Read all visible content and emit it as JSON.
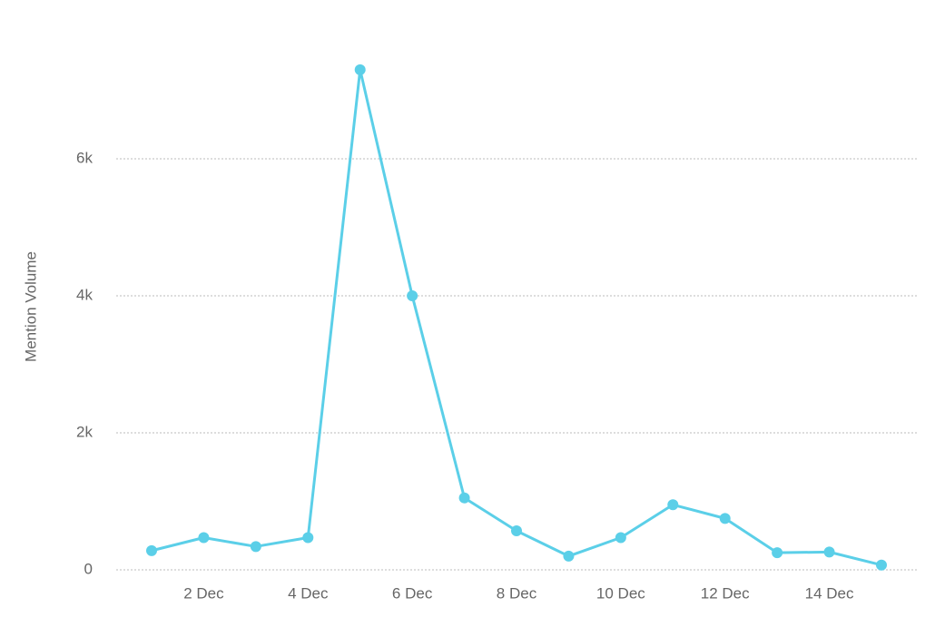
{
  "chart_data": {
    "type": "line",
    "y_label": "Mention Volume",
    "categories": [
      null,
      "2 Dec",
      null,
      "4 Dec",
      null,
      "6 Dec",
      null,
      "8 Dec",
      null,
      "10 Dec",
      null,
      "12 Dec",
      null,
      "14 Dec",
      null
    ],
    "series": [
      {
        "name": "Mention Volume",
        "color": "#5bcfe8",
        "values": [
          280,
          470,
          340,
          470,
          7300,
          4000,
          1050,
          570,
          200,
          470,
          950,
          750,
          250,
          260,
          70
        ]
      }
    ],
    "ylim": [
      0,
      8000
    ],
    "yticks": [
      0,
      {
        "value": 2000,
        "label": "2k"
      },
      {
        "value": 4000,
        "label": "4k"
      },
      {
        "value": 6000,
        "label": "6k"
      }
    ],
    "grid": true
  }
}
